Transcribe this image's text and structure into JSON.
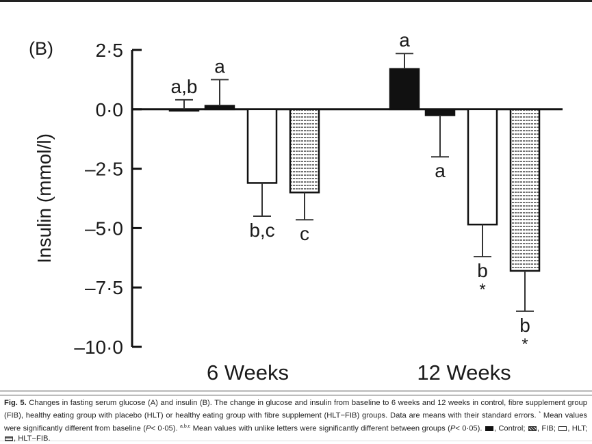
{
  "chart_data": {
    "type": "bar",
    "panel_label": "(B)",
    "ylabel": "Insulin (mmol/l)",
    "ylim": [
      -10.0,
      2.5
    ],
    "yticks": [
      2.5,
      0.0,
      -2.5,
      -5.0,
      -7.5,
      -10.0
    ],
    "ytick_labels": [
      "2·5",
      "0·0",
      "–2·5",
      "–5·0",
      "–7·5",
      "–10·0"
    ],
    "categories": [
      "6 Weeks",
      "12 Weeks"
    ],
    "series": [
      {
        "name": "Control",
        "fill": "solid",
        "values": [
          0.0,
          1.7
        ],
        "error": [
          0.4,
          0.65
        ],
        "labels": [
          "a,b",
          "a"
        ],
        "stars": [
          "",
          ""
        ]
      },
      {
        "name": "FIB",
        "fill": "solid",
        "values": [
          0.15,
          -0.25
        ],
        "error": [
          1.1,
          1.75
        ],
        "labels": [
          "a",
          "a"
        ],
        "stars": [
          "",
          ""
        ]
      },
      {
        "name": "HLT",
        "fill": "white",
        "values": [
          -3.1,
          -4.85
        ],
        "error": [
          1.4,
          1.35
        ],
        "labels": [
          "b,c",
          "b"
        ],
        "stars": [
          "",
          "*"
        ]
      },
      {
        "name": "HLT–FIB",
        "fill": "hatch",
        "values": [
          -3.5,
          -6.8
        ],
        "error": [
          1.15,
          1.7
        ],
        "labels": [
          "c",
          "b"
        ],
        "stars": [
          "",
          "*"
        ]
      }
    ],
    "grid": false,
    "legend": "caption"
  },
  "caption": {
    "fig": "Fig. 5.",
    "text1": " Changes in fasting serum glucose (A) and insulin (B). The change in glucose and insulin from baseline to 6 weeks and 12 weeks in control, fibre supplement group (FIB), healthy eating group with placebo (HLT) or healthy eating group with fibre supplement (HLT−FIB) groups. Data are means with their standard errors. ",
    "star": "*",
    "text2": " Mean values were significantly different from baseline (",
    "p1": "P",
    "text3": "< 0·05). ",
    "sup": "a,b,c",
    "text4": " Mean values with unlike letters were significantly different between groups (",
    "p2": "P",
    "text5": "< 0·05). ",
    "legend": [
      {
        "label": ", Control; "
      },
      {
        "label": ", FIB; "
      },
      {
        "label": ", HLT; "
      },
      {
        "label": ", HLT−FIB."
      }
    ]
  }
}
